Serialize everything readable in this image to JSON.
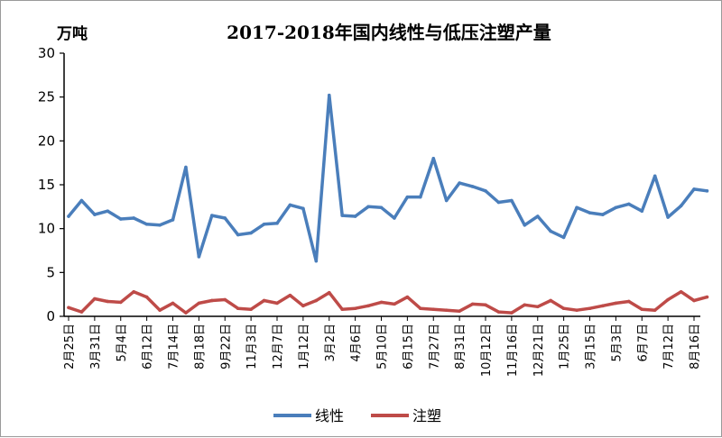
{
  "chart_data": {
    "type": "line",
    "title": "2017-2018年国内线性与低压注塑产量",
    "unit_label": "万吨",
    "xlabel": "",
    "ylabel": "",
    "ylim": [
      0,
      30
    ],
    "yticks": [
      "0",
      "5",
      "10",
      "15",
      "20",
      "25",
      "30"
    ],
    "categories": [
      "2月25日",
      "3月31日",
      "5月4日",
      "6月12日",
      "7月14日",
      "8月18日",
      "9月22日",
      "11月3日",
      "12月7日",
      "1月12日",
      "3月2日",
      "4月6日",
      "5月10日",
      "6月15日",
      "7月27日",
      "8月31日",
      "10月12日",
      "11月16日",
      "12月21日",
      "1月25日",
      "3月15日",
      "5月3日",
      "6月7日",
      "7月12日",
      "8月16日"
    ],
    "x": [
      0,
      0.5,
      1,
      1.5,
      2,
      2.5,
      3,
      3.5,
      4,
      4.5,
      5,
      5.5,
      6,
      6.5,
      7,
      7.5,
      8,
      8.5,
      9,
      9.5,
      10,
      10.5,
      11,
      11.5,
      12,
      12.5,
      13,
      13.5,
      14,
      14.5,
      15,
      15.5,
      16,
      16.5,
      17,
      17.5,
      18,
      18.5,
      19,
      19.5,
      20,
      20.5,
      21,
      21.5,
      22,
      22.5,
      23,
      23.5,
      24,
      24.5
    ],
    "series": [
      {
        "name": "线性",
        "color": "#4a7ebb",
        "values": [
          11.4,
          13.2,
          11.6,
          12.0,
          11.1,
          11.2,
          10.5,
          10.4,
          11.0,
          17.0,
          6.8,
          11.5,
          11.2,
          9.3,
          9.5,
          10.5,
          10.6,
          12.7,
          12.3,
          6.3,
          25.2,
          11.5,
          11.4,
          12.5,
          12.4,
          11.2,
          13.6,
          13.6,
          18.0,
          13.2,
          15.2,
          14.8,
          14.3,
          13.0,
          13.2,
          10.4,
          11.4,
          9.7,
          9.0,
          12.4,
          11.8,
          11.6,
          12.4,
          12.8,
          12.0,
          16.0,
          11.3,
          12.6,
          14.5,
          14.3
        ]
      },
      {
        "name": "注塑",
        "color": "#be4b48",
        "values": [
          1.0,
          0.5,
          2.0,
          1.7,
          1.6,
          2.8,
          2.2,
          0.7,
          1.5,
          0.4,
          1.5,
          1.8,
          1.9,
          0.9,
          0.8,
          1.8,
          1.5,
          2.4,
          1.2,
          1.8,
          2.7,
          0.8,
          0.9,
          1.2,
          1.6,
          1.4,
          2.2,
          0.9,
          0.8,
          0.7,
          0.6,
          1.4,
          1.3,
          0.5,
          0.4,
          1.3,
          1.1,
          1.8,
          0.9,
          0.7,
          0.9,
          1.2,
          1.5,
          1.7,
          0.8,
          0.7,
          1.9,
          2.8,
          1.8,
          2.2
        ]
      }
    ],
    "legend_position": "bottom",
    "grid": false
  }
}
